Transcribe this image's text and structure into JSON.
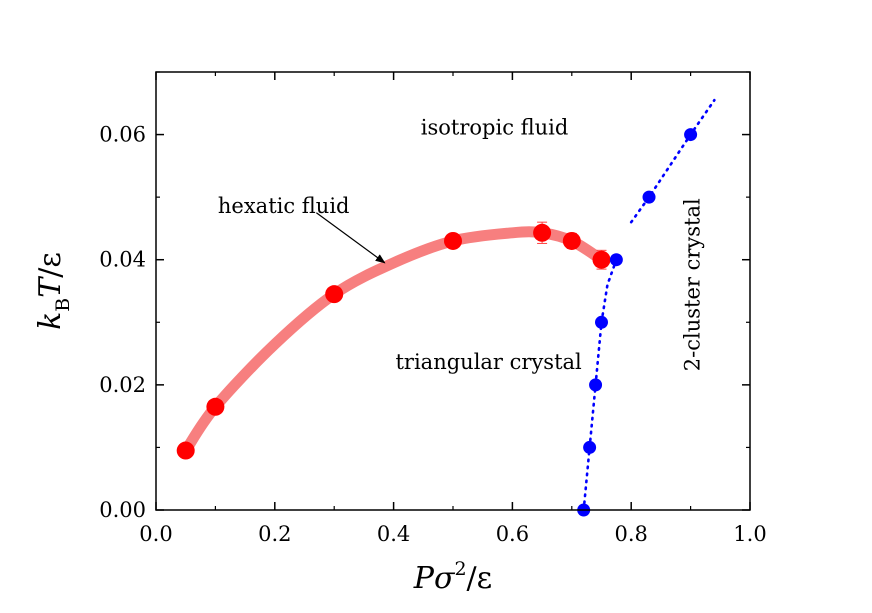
{
  "chart_data": {
    "type": "scatter",
    "xlabel": "Pσ²/ε",
    "xlabel_parts": {
      "main": "Pσ",
      "sup": "2",
      "rest": "/ε"
    },
    "ylabel": "k_B T/ε",
    "ylabel_parts": {
      "k": "k",
      "sub": "B",
      "t": "T",
      "rest": "/ε"
    },
    "xlim": [
      0.0,
      1.0
    ],
    "ylim": [
      0.0,
      0.07
    ],
    "x_ticks": [
      0.0,
      0.2,
      0.4,
      0.6,
      0.8,
      1.0
    ],
    "x_tick_labels": [
      "0.0",
      "0.2",
      "0.4",
      "0.6",
      "0.8",
      "1.0"
    ],
    "y_ticks": [
      0.0,
      0.02,
      0.04,
      0.06
    ],
    "y_tick_labels": [
      "0.00",
      "0.02",
      "0.04",
      "0.06"
    ],
    "grid": false,
    "series": [
      {
        "marker": "large-circle",
        "color": "#ff0000",
        "x": [
          0.05,
          0.1,
          0.3,
          0.5,
          0.65,
          0.7,
          0.75
        ],
        "y": [
          0.0095,
          0.0165,
          0.0345,
          0.043,
          0.0443,
          0.043,
          0.04
        ],
        "yerr": [
          0,
          0,
          0,
          0,
          0.0017,
          0.0012,
          0.0015
        ]
      },
      {
        "marker": "small-circle",
        "color": "#0000ff",
        "x": [
          0.72,
          0.73,
          0.74,
          0.75,
          0.775,
          0.83,
          0.9
        ],
        "y": [
          0.0,
          0.01,
          0.02,
          0.03,
          0.04,
          0.05,
          0.06
        ]
      }
    ],
    "curves": [
      {
        "style": "thick-solid",
        "color": "#f77f7f",
        "x": [
          0.05,
          0.1,
          0.2,
          0.3,
          0.4,
          0.5,
          0.6,
          0.65,
          0.7,
          0.75
        ],
        "y": [
          0.0095,
          0.0165,
          0.0265,
          0.0345,
          0.0395,
          0.043,
          0.0443,
          0.0443,
          0.043,
          0.04
        ]
      },
      {
        "style": "dotted",
        "color": "#0000ff",
        "x": [
          0.72,
          0.73,
          0.74,
          0.75,
          0.76,
          0.775
        ],
        "y": [
          0.0,
          0.01,
          0.02,
          0.03,
          0.036,
          0.04
        ]
      },
      {
        "style": "dotted",
        "color": "#0000ff",
        "x": [
          0.8,
          0.83,
          0.9,
          0.94
        ],
        "y": [
          0.046,
          0.05,
          0.06,
          0.0655
        ]
      }
    ],
    "annotations": [
      {
        "text": "isotropic fluid",
        "x": 0.57,
        "y": 0.06
      },
      {
        "text": "hexatic fluid",
        "x": 0.215,
        "y": 0.0475
      },
      {
        "text": "triangular crystal",
        "x": 0.56,
        "y": 0.0225
      },
      {
        "text": "2-cluster crystal",
        "x": 0.915,
        "y": 0.036,
        "rotation": -90
      }
    ],
    "arrow": {
      "from": [
        0.27,
        0.0475
      ],
      "to": [
        0.385,
        0.0395
      ]
    }
  }
}
